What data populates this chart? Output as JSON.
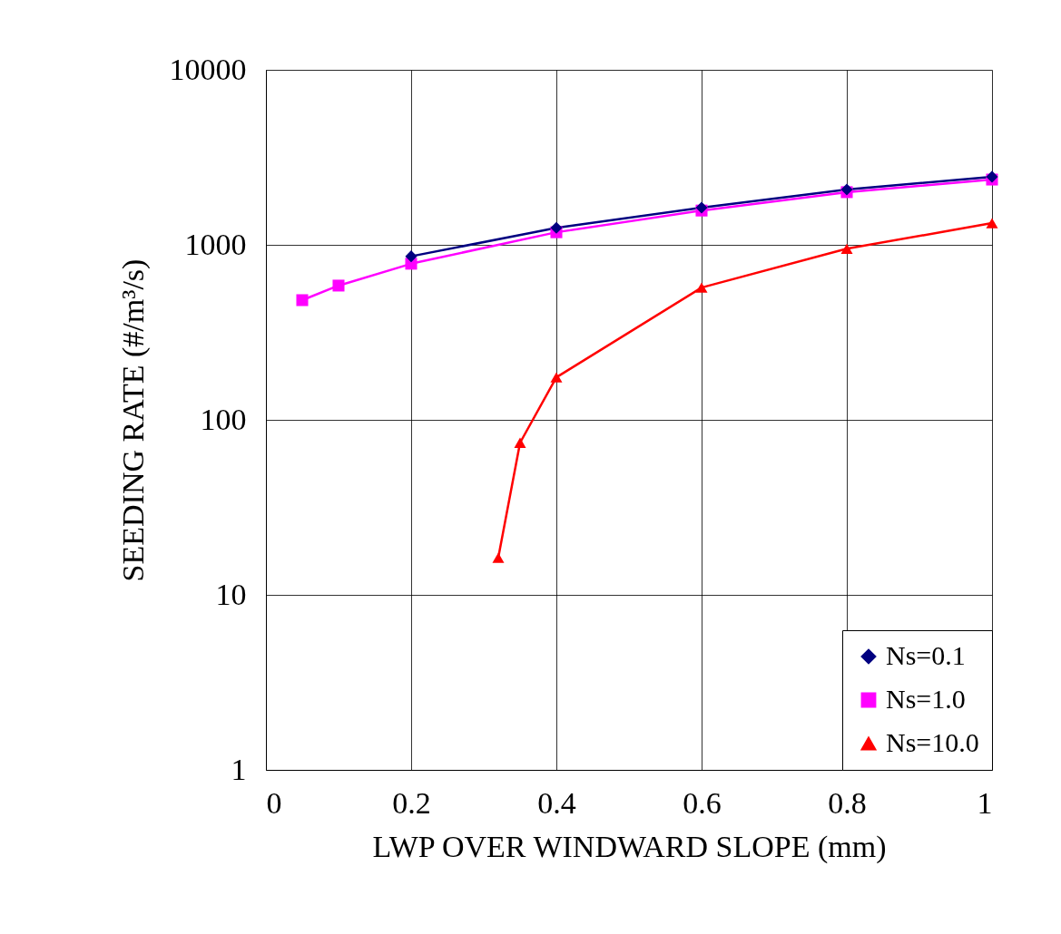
{
  "chart_data": {
    "type": "line",
    "xlabel": "LWP OVER WINDWARD SLOPE (mm)",
    "ylabel": "SEEDING RATE (#/m³/s)",
    "log": "y",
    "xlim": [
      0,
      1
    ],
    "xticks": [
      0,
      0.2,
      0.4,
      0.6,
      0.8,
      1
    ],
    "ylim": [
      1,
      10000
    ],
    "yticks": [
      1,
      10,
      100,
      1000,
      10000
    ],
    "grid": true,
    "legend": "bottom right",
    "line_style": "solid",
    "series": [
      {
        "name": "Ns=0.1",
        "color": "#000080",
        "marker": "diamond",
        "x": [
          0.2,
          0.4,
          0.6,
          0.8,
          1.0
        ],
        "values": [
          860,
          1250,
          1630,
          2070,
          2450
        ]
      },
      {
        "name": "Ns=1.0",
        "color": "#ff00ff",
        "marker": "square",
        "x": [
          0.05,
          0.1,
          0.2,
          0.4,
          0.6,
          0.8,
          1.0
        ],
        "values": [
          483,
          585,
          780,
          1180,
          1570,
          2000,
          2360
        ]
      },
      {
        "name": "Ns=10.0",
        "color": "#ff0000",
        "marker": "triangle",
        "x": [
          0.32,
          0.35,
          0.4,
          0.6,
          0.8,
          1.0
        ],
        "values": [
          16.3,
          74,
          175,
          570,
          950,
          1330
        ]
      }
    ]
  }
}
